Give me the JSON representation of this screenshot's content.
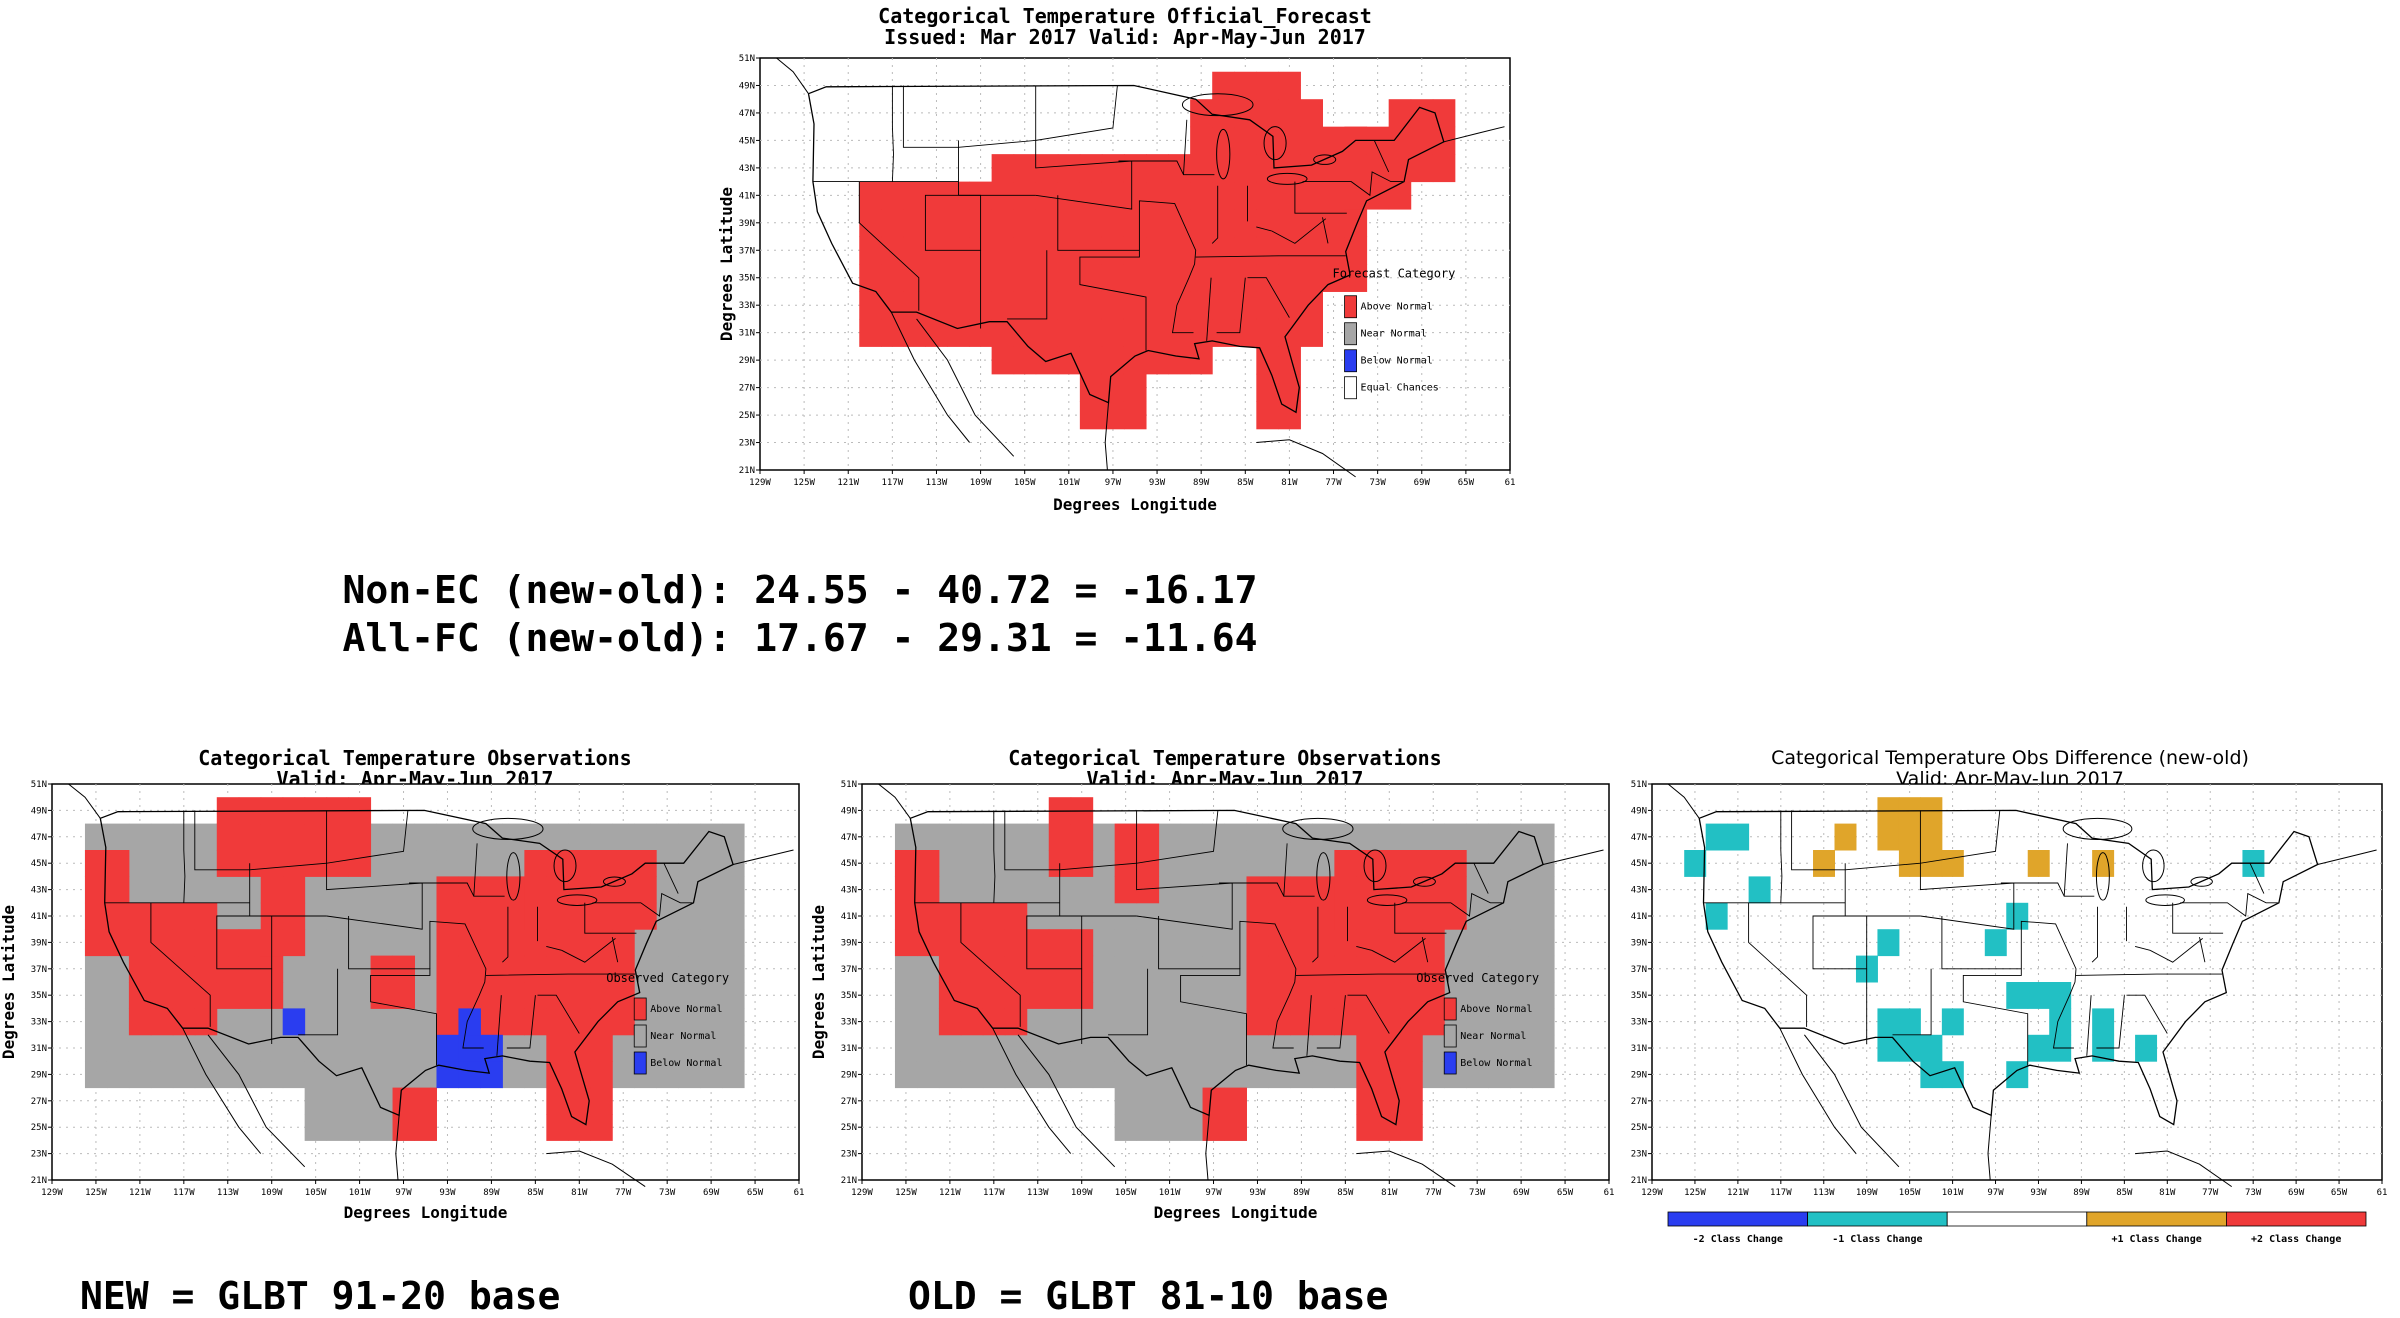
{
  "colors": {
    "above": "#f03a3a",
    "near": "#a6a6a6",
    "below": "#2a3df0",
    "equal": "#ffffff",
    "minus2": "#2a3df0",
    "minus1": "#22c0c4",
    "plus1": "#e0a52a",
    "plus2": "#f03a3a"
  },
  "lon_ticks": [
    "129W",
    "125W",
    "121W",
    "117W",
    "113W",
    "109W",
    "105W",
    "101W",
    "97W",
    "93W",
    "89W",
    "85W",
    "81W",
    "77W",
    "73W",
    "69W",
    "65W",
    "61"
  ],
  "lat_ticks": [
    "21N",
    "23N",
    "25N",
    "27N",
    "29N",
    "31N",
    "33N",
    "35N",
    "37N",
    "39N",
    "41N",
    "43N",
    "45N",
    "47N",
    "49N",
    "51N"
  ],
  "forecast": {
    "title1": "Categorical Temperature Official_Forecast",
    "title2": "Issued: Mar 2017 Valid: Apr-May-Jun 2017",
    "xlabel": "Degrees Longitude",
    "ylabel": "Degrees Latitude",
    "legend_title": "Forecast Category",
    "legend": [
      "Above Normal",
      "Near Normal",
      "Below Normal",
      "Equal Chances"
    ]
  },
  "stats": {
    "line1": "Non-EC (new-old): 24.55 - 40.72 = -16.17",
    "line2": "All-FC (new-old): 17.67 - 29.31 = -11.64"
  },
  "obs_new": {
    "title1": "Categorical Temperature Observations",
    "title2": "Valid: Apr-May-Jun 2017",
    "xlabel": "Degrees Longitude",
    "ylabel": "Degrees Latitude",
    "legend_title": "Observed Category",
    "legend": [
      "Above Normal",
      "Near Normal",
      "Below Normal"
    ],
    "caption": "NEW = GLBT 91-20 base"
  },
  "obs_old": {
    "title1": "Categorical Temperature Observations",
    "title2": "Valid: Apr-May-Jun 2017",
    "xlabel": "Degrees Longitude",
    "ylabel": "Degrees Latitude",
    "legend_title": "Observed Category",
    "legend": [
      "Above Normal",
      "Near Normal",
      "Below Normal"
    ],
    "caption": "OLD = GLBT 81-10 base"
  },
  "diff": {
    "title1": "Categorical Temperature Obs Difference (new-old)",
    "title2": "Valid: Apr-May-Jun 2017",
    "colorbar_labels": [
      "-2 Class Change",
      "-1 Class Change",
      "+1 Class Change",
      "+2 Class Change"
    ]
  }
}
